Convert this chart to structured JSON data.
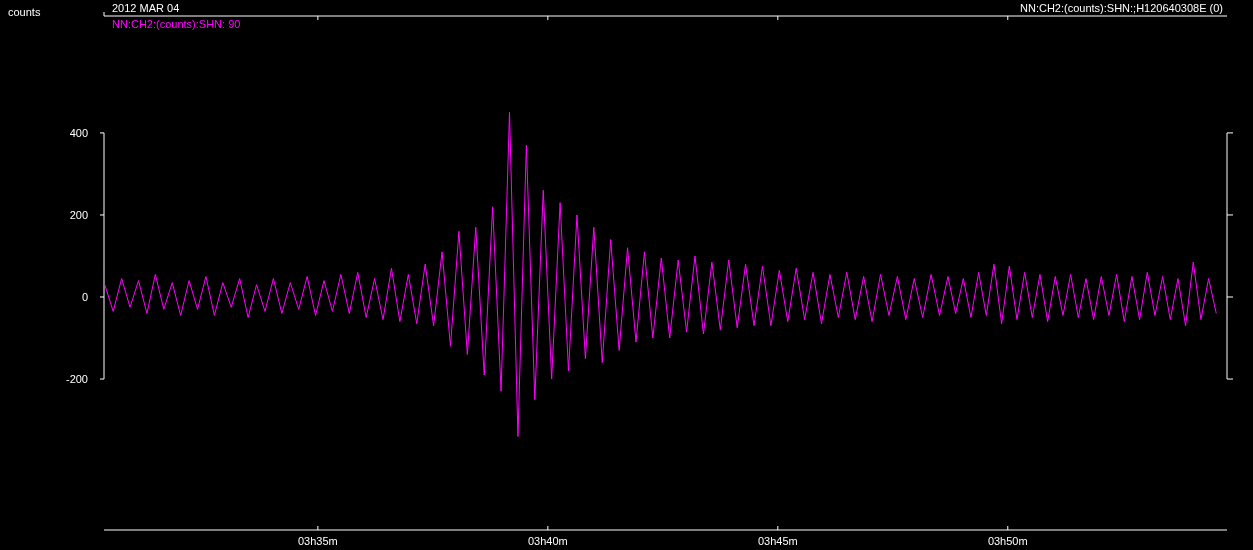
{
  "chart_data": {
    "type": "line",
    "title": "NN:CH2:(counts):SHN:;H120640308E (0)",
    "subtitle": "2012 MAR 04",
    "ylabel": "counts",
    "legend": "top left",
    "xlim": [
      "2012-03-04T03:30:21",
      "2012-03-04T03:54:46"
    ],
    "xticks": [
      {
        "value": "2012-03-04T03:35",
        "label": "03h35m"
      },
      {
        "value": "2012-03-04T03:40",
        "label": "03h40m"
      },
      {
        "value": "2012-03-04T03:45",
        "label": "03h45m"
      },
      {
        "value": "2012-03-04T03:50",
        "label": "03h50m"
      }
    ],
    "ylim": [
      -568,
      685
    ],
    "yticks": [
      -200,
      0,
      200,
      400
    ],
    "x": [
      "2012-03-04T03:30:22",
      "2012-03-04T03:30:33",
      "2012-03-04T03:30:44",
      "2012-03-04T03:30:55",
      "2012-03-04T03:31:06",
      "2012-03-04T03:31:17",
      "2012-03-04T03:31:28",
      "2012-03-04T03:31:39",
      "2012-03-04T03:31:50",
      "2012-03-04T03:32:01",
      "2012-03-04T03:32:12",
      "2012-03-04T03:32:23",
      "2012-03-04T03:32:34",
      "2012-03-04T03:32:45",
      "2012-03-04T03:32:56",
      "2012-03-04T03:33:07",
      "2012-03-04T03:33:18",
      "2012-03-04T03:33:29",
      "2012-03-04T03:33:40",
      "2012-03-04T03:33:51",
      "2012-03-04T03:34:02",
      "2012-03-04T03:34:13",
      "2012-03-04T03:34:24",
      "2012-03-04T03:34:35",
      "2012-03-04T03:34:46",
      "2012-03-04T03:34:57",
      "2012-03-04T03:35:08",
      "2012-03-04T03:35:19",
      "2012-03-04T03:35:30",
      "2012-03-04T03:35:41",
      "2012-03-04T03:35:52",
      "2012-03-04T03:36:03",
      "2012-03-04T03:36:14",
      "2012-03-04T03:36:25",
      "2012-03-04T03:36:36",
      "2012-03-04T03:36:47",
      "2012-03-04T03:36:58",
      "2012-03-04T03:37:09",
      "2012-03-04T03:37:20",
      "2012-03-04T03:37:31",
      "2012-03-04T03:37:42",
      "2012-03-04T03:37:53",
      "2012-03-04T03:38:04",
      "2012-03-04T03:38:15",
      "2012-03-04T03:38:26",
      "2012-03-04T03:38:37",
      "2012-03-04T03:38:48",
      "2012-03-04T03:38:59",
      "2012-03-04T03:39:10",
      "2012-03-04T03:39:21",
      "2012-03-04T03:39:32",
      "2012-03-04T03:39:43",
      "2012-03-04T03:39:54",
      "2012-03-04T03:40:05",
      "2012-03-04T03:40:16",
      "2012-03-04T03:40:27",
      "2012-03-04T03:40:38",
      "2012-03-04T03:40:49",
      "2012-03-04T03:41:00",
      "2012-03-04T03:41:11",
      "2012-03-04T03:41:22",
      "2012-03-04T03:41:33",
      "2012-03-04T03:41:44",
      "2012-03-04T03:41:55",
      "2012-03-04T03:42:06",
      "2012-03-04T03:42:17",
      "2012-03-04T03:42:28",
      "2012-03-04T03:42:39",
      "2012-03-04T03:42:50",
      "2012-03-04T03:43:01",
      "2012-03-04T03:43:12",
      "2012-03-04T03:43:23",
      "2012-03-04T03:43:34",
      "2012-03-04T03:43:45",
      "2012-03-04T03:43:56",
      "2012-03-04T03:44:07",
      "2012-03-04T03:44:18",
      "2012-03-04T03:44:29",
      "2012-03-04T03:44:40",
      "2012-03-04T03:44:51",
      "2012-03-04T03:45:02",
      "2012-03-04T03:45:13",
      "2012-03-04T03:45:24",
      "2012-03-04T03:45:35",
      "2012-03-04T03:45:46",
      "2012-03-04T03:45:57",
      "2012-03-04T03:46:08",
      "2012-03-04T03:46:19",
      "2012-03-04T03:46:30",
      "2012-03-04T03:46:41",
      "2012-03-04T03:46:52",
      "2012-03-04T03:47:03",
      "2012-03-04T03:47:14",
      "2012-03-04T03:47:25",
      "2012-03-04T03:47:36",
      "2012-03-04T03:47:47",
      "2012-03-04T03:47:58",
      "2012-03-04T03:48:09",
      "2012-03-04T03:48:20",
      "2012-03-04T03:48:31",
      "2012-03-04T03:48:42",
      "2012-03-04T03:48:52",
      "2012-03-04T03:49:02",
      "2012-03-04T03:49:12",
      "2012-03-04T03:49:22",
      "2012-03-04T03:49:32",
      "2012-03-04T03:49:42",
      "2012-03-04T03:49:52",
      "2012-03-04T03:50:02",
      "2012-03-04T03:50:12",
      "2012-03-04T03:50:22",
      "2012-03-04T03:50:32",
      "2012-03-04T03:50:42",
      "2012-03-04T03:50:52",
      "2012-03-04T03:51:02",
      "2012-03-04T03:51:12",
      "2012-03-04T03:51:22",
      "2012-03-04T03:51:32",
      "2012-03-04T03:51:42",
      "2012-03-04T03:51:52",
      "2012-03-04T03:52:02",
      "2012-03-04T03:52:12",
      "2012-03-04T03:52:22",
      "2012-03-04T03:52:32",
      "2012-03-04T03:52:42",
      "2012-03-04T03:52:52",
      "2012-03-04T03:53:02",
      "2012-03-04T03:53:12",
      "2012-03-04T03:53:22",
      "2012-03-04T03:53:32",
      "2012-03-04T03:53:42",
      "2012-03-04T03:53:52",
      "2012-03-04T03:54:02",
      "2012-03-04T03:54:12",
      "2012-03-04T03:54:22",
      "2012-03-04T03:54:32"
    ],
    "series": [
      {
        "name": "NN:CH2:(counts):SHN: 90",
        "color": "#ff00ff",
        "values": [
          30,
          -35,
          45,
          -25,
          40,
          -40,
          55,
          -30,
          35,
          -45,
          40,
          -30,
          50,
          -45,
          35,
          -25,
          45,
          -50,
          30,
          -35,
          45,
          -40,
          35,
          -30,
          50,
          -45,
          40,
          -35,
          55,
          -40,
          60,
          -50,
          45,
          -55,
          70,
          -60,
          55,
          -65,
          80,
          -70,
          110,
          -120,
          160,
          -140,
          170,
          -190,
          220,
          -230,
          450,
          -340,
          370,
          -250,
          260,
          -200,
          230,
          -180,
          200,
          -150,
          170,
          -160,
          140,
          -130,
          120,
          -110,
          110,
          -100,
          95,
          -100,
          90,
          -85,
          100,
          -90,
          85,
          -80,
          90,
          -75,
          80,
          -70,
          75,
          -70,
          65,
          -60,
          70,
          -55,
          60,
          -65,
          55,
          -50,
          60,
          -55,
          50,
          -60,
          55,
          -45,
          50,
          -55,
          45,
          -50,
          55,
          -45,
          50,
          -40,
          45,
          -50,
          60,
          -45,
          80,
          -65,
          75,
          -55,
          60,
          -50,
          55,
          -60,
          50,
          -45,
          55,
          -50,
          45,
          -55,
          50,
          -45,
          55,
          -60,
          50,
          -55,
          60,
          -45,
          50,
          -55,
          45,
          -70,
          85,
          -55,
          45,
          -40
        ]
      }
    ]
  }
}
